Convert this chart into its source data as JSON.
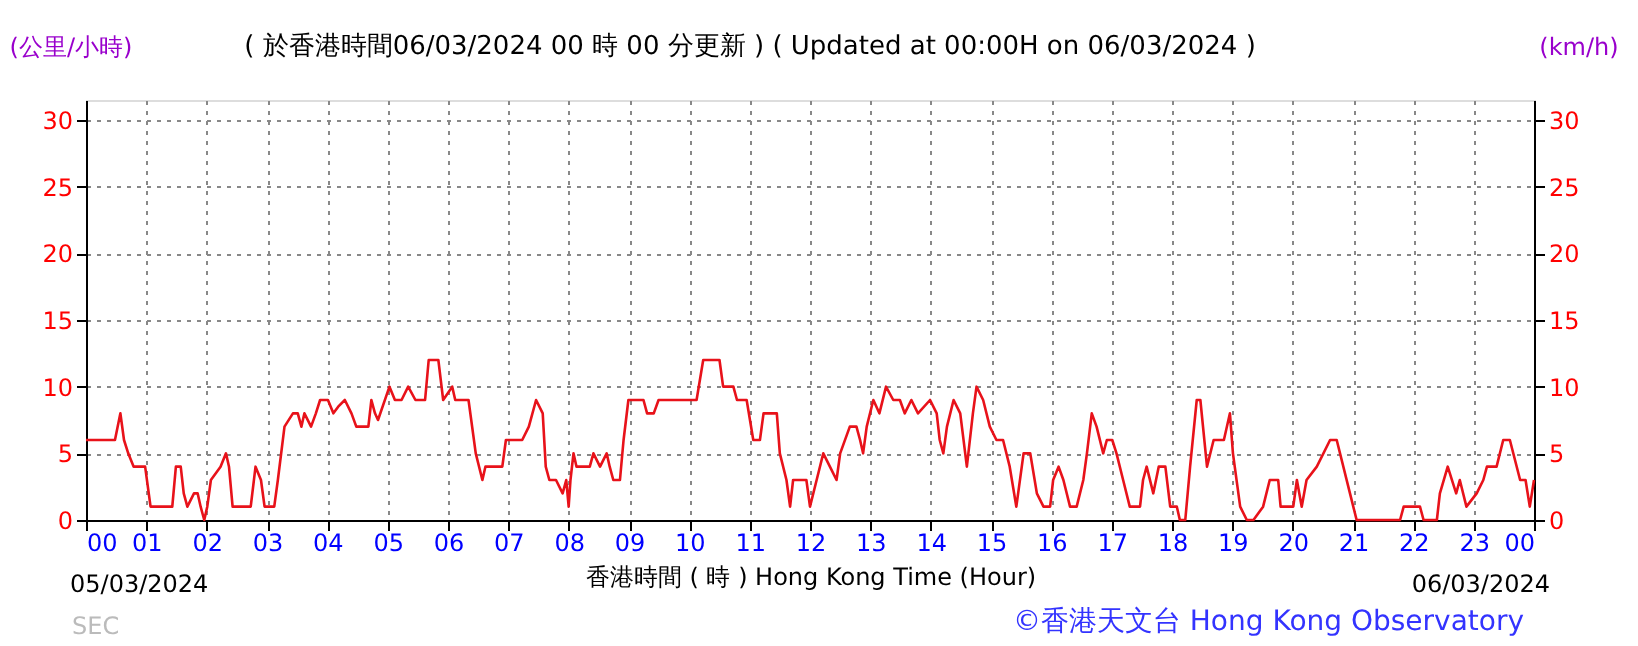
{
  "chart_data": {
    "type": "line",
    "title": "( 於香港時間06/03/2024 00 時 00 分更新 ) ( Updated at 00:00H on 06/03/2024 )",
    "xlabel": "香港時間 ( 時 ) Hong Kong Time (Hour)",
    "ylabel": "(公里/小時)",
    "y2label": "(km/h)",
    "annotations": [
      "05/03/2024",
      "06/03/2024",
      "SEC",
      "©香港天文台 Hong Kong Observatory"
    ],
    "series": [
      {
        "color": "#e8121a",
        "x": [
          0,
          0.48,
          0.57,
          0.63,
          0.7,
          0.79,
          0.98,
          1.07,
          1.43,
          1.49,
          1.57,
          1.62,
          1.68,
          1.79,
          1.85,
          1.9,
          1.96,
          2.01,
          2.07,
          2.23,
          2.32,
          2.37,
          2.43,
          2.73,
          2.81,
          2.9,
          2.96,
          3.12,
          3.18,
          3.29,
          3.43,
          3.51,
          3.57,
          3.62,
          3.73,
          3.81,
          3.88,
          4.01,
          4.1,
          4.18,
          4.29,
          4.4,
          4.48,
          4.68,
          4.73,
          4.79,
          4.84,
          5.03,
          5.12,
          5.23,
          5.34,
          5.46,
          5.62,
          5.68,
          5.84,
          5.92,
          6.07,
          6.12,
          6.34,
          6.46,
          6.57,
          6.62,
          6.9,
          6.96,
          7.23,
          7.34,
          7.46,
          7.57,
          7.62,
          7.68,
          7.79,
          7.9,
          7.96,
          8.0,
          8.03,
          8.08,
          8.13,
          8.35,
          8.41,
          8.52,
          8.63,
          8.68,
          8.74,
          8.85,
          8.91,
          8.99,
          9.07,
          9.16,
          9.24,
          9.3,
          9.41,
          9.49,
          10.12,
          10.23,
          10.5,
          10.56,
          10.73,
          10.79,
          10.95,
          11.06,
          11.17,
          11.23,
          11.45,
          11.5,
          11.61,
          11.67,
          11.72,
          11.94,
          12.0,
          12.11,
          12.22,
          12.33,
          12.44,
          12.5,
          12.66,
          12.77,
          12.83,
          12.88,
          12.94,
          13.05,
          13.15,
          13.26,
          13.38,
          13.49,
          13.57,
          13.68,
          13.79,
          13.99,
          14.1,
          14.15,
          14.21,
          14.27,
          14.38,
          14.49,
          14.6,
          14.7,
          14.76,
          14.87,
          14.98,
          15.09,
          15.2,
          15.31,
          15.42,
          15.54,
          15.65,
          15.76,
          15.87,
          15.98,
          16.03,
          16.12,
          16.2,
          16.31,
          16.42,
          16.53,
          16.59,
          16.67,
          16.75,
          16.86,
          16.92,
          17.01,
          17.08,
          17.19,
          17.3,
          17.47,
          17.52,
          17.58,
          17.69,
          17.78,
          17.89,
          17.97,
          18.08,
          18.13,
          18.22,
          18.3,
          18.41,
          18.47,
          18.58,
          18.69,
          18.86,
          18.96,
          19.01,
          19.13,
          19.24,
          19.35,
          19.51,
          19.62,
          19.76,
          19.8,
          20.01,
          20.07,
          20.15,
          20.23,
          20.4,
          20.62,
          20.73,
          20.95,
          21.06,
          21.78,
          21.84,
          22.11,
          22.17,
          22.39,
          22.44,
          22.57,
          22.71,
          22.77,
          22.88,
          23.05,
          23.16,
          23.22,
          23.38,
          23.49,
          23.6,
          23.77,
          23.86,
          23.93,
          24.0
        ],
        "values": [
          6,
          6,
          8,
          6,
          5,
          4,
          4,
          1,
          1,
          4,
          4,
          2,
          1,
          2,
          2,
          1,
          0,
          1,
          3,
          4,
          5,
          4,
          1,
          1,
          4,
          3,
          1,
          1,
          3,
          7,
          8,
          8,
          7,
          8,
          7,
          8,
          9,
          9,
          8,
          8.5,
          9,
          8,
          7,
          7,
          9,
          8,
          7.5,
          10,
          9,
          9,
          10,
          9,
          9,
          12,
          12,
          9,
          10,
          9,
          9,
          5,
          3,
          4,
          4,
          6,
          6,
          7,
          9,
          8,
          4,
          3,
          3,
          2,
          3,
          1,
          3,
          5,
          4,
          4,
          5,
          4,
          5,
          4,
          3,
          3,
          6,
          9,
          9,
          9,
          9,
          8,
          8,
          9,
          9,
          12,
          12,
          10,
          10,
          9,
          9,
          6,
          6,
          8,
          8,
          5,
          3,
          1,
          3,
          3,
          1,
          3,
          5,
          4,
          3,
          5,
          7,
          7,
          6,
          5,
          7,
          9,
          8,
          10,
          9,
          9,
          8,
          9,
          8,
          9,
          8,
          6,
          5,
          7,
          9,
          8,
          4,
          8,
          10,
          9,
          7,
          6,
          6,
          4,
          1,
          5,
          5,
          2,
          1,
          1,
          3,
          4,
          3,
          1,
          1,
          3,
          5,
          8,
          7,
          5,
          6,
          6,
          5,
          3,
          1,
          1,
          3,
          4,
          2,
          4,
          4,
          1,
          1,
          0,
          0,
          4,
          9,
          9,
          4,
          6,
          6,
          8,
          5,
          1,
          0,
          0,
          1,
          3,
          3,
          1,
          1,
          3,
          1,
          3,
          4,
          6,
          6,
          2,
          0,
          0,
          1,
          1,
          0,
          0,
          2,
          4,
          2,
          3,
          1,
          2,
          3,
          4,
          4,
          6,
          6,
          3,
          3,
          1,
          3
        ]
      }
    ],
    "xlim": [
      0,
      24
    ],
    "xticks": [
      {
        "value": 0,
        "label": "00"
      },
      {
        "value": 1,
        "label": "01"
      },
      {
        "value": 2,
        "label": "02"
      },
      {
        "value": 3,
        "label": "03"
      },
      {
        "value": 4,
        "label": "04"
      },
      {
        "value": 5,
        "label": "05"
      },
      {
        "value": 6,
        "label": "06"
      },
      {
        "value": 7,
        "label": "07"
      },
      {
        "value": 8,
        "label": "08"
      },
      {
        "value": 9,
        "label": "09"
      },
      10,
      11,
      12,
      13,
      14,
      15,
      16,
      17,
      18,
      19,
      20,
      21,
      22,
      23,
      {
        "value": 24,
        "label": "00"
      }
    ],
    "ylim": [
      0,
      31.5
    ],
    "yticks": [
      0,
      5,
      10,
      15,
      20,
      25,
      30
    ],
    "y2lim": [
      0,
      31.5
    ],
    "y2ticks": [
      0,
      5,
      10,
      15,
      20,
      25,
      30
    ],
    "grid": true,
    "line_style": "solid",
    "marker": "none"
  }
}
